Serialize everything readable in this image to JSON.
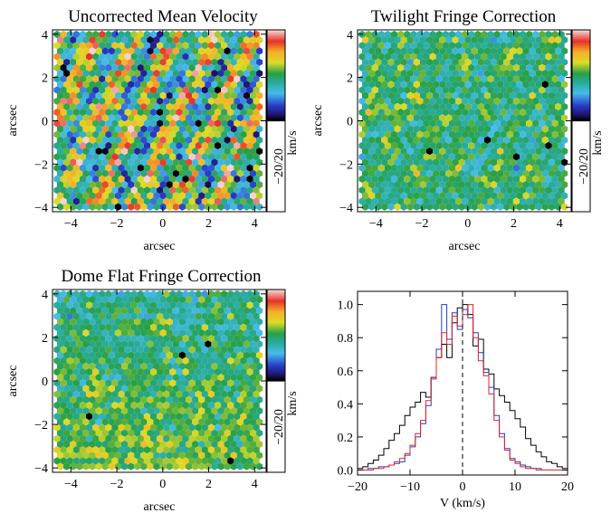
{
  "chart_data": [
    {
      "type": "heatmap",
      "title": "Uncorrected Mean Velocity",
      "xlabel": "arcsec",
      "ylabel": "arcsec",
      "xlim": [
        -4.8,
        4.5
      ],
      "ylim": [
        -4.2,
        4.2
      ],
      "xticks": [
        -4,
        -2,
        0,
        2,
        4
      ],
      "yticks": [
        -4,
        -2,
        0,
        2,
        4
      ],
      "colorbar": {
        "label": "km/s",
        "range_label": "−20/20",
        "range": [
          -20,
          20
        ]
      },
      "pattern": {
        "mean": 0,
        "spread": 8,
        "stripe_amplitude": 9,
        "seed": 11
      }
    },
    {
      "type": "heatmap",
      "title": "Twilight Fringe Correction",
      "xlabel": "arcsec",
      "ylabel": "arcsec",
      "xlim": [
        -4.8,
        4.5
      ],
      "ylim": [
        -4.2,
        4.2
      ],
      "xticks": [
        -4,
        -2,
        0,
        2,
        4
      ],
      "yticks": [
        -4,
        -2,
        0,
        2,
        4
      ],
      "colorbar": {
        "label": "km/s",
        "range_label": "−20/20",
        "range": [
          -20,
          20
        ]
      },
      "pattern": {
        "mean": -1,
        "spread": 4,
        "stripe_amplitude": 2,
        "seed": 23
      }
    },
    {
      "type": "heatmap",
      "title": "Dome Flat Fringe Correction",
      "xlabel": "arcsec",
      "ylabel": "arcsec",
      "xlim": [
        -4.8,
        4.5
      ],
      "ylim": [
        -4.2,
        4.2
      ],
      "xticks": [
        -4,
        -2,
        0,
        2,
        4
      ],
      "yticks": [
        -4,
        -2,
        0,
        2,
        4
      ],
      "colorbar": {
        "label": "km/s",
        "range_label": "−20/20",
        "range": [
          -20,
          20
        ]
      },
      "pattern": {
        "mean": 0,
        "spread": 4,
        "stripe_amplitude": 1,
        "seed": 37
      }
    },
    {
      "type": "line",
      "title": "",
      "xlabel": "V (km/s)",
      "ylabel": "",
      "xlim": [
        -20,
        20
      ],
      "ylim": [
        -0.03,
        1.08
      ],
      "xticks": [
        -20,
        -10,
        0,
        10,
        20
      ],
      "yticks": [
        0.0,
        0.2,
        0.4,
        0.6,
        0.8,
        1.0
      ],
      "ytick_labels": [
        "0.0",
        "0.2",
        "0.4",
        "0.6",
        "0.8",
        "1.0"
      ],
      "vline": 0,
      "bin_width": 1,
      "series": [
        {
          "color": "#000000",
          "x": [
            -20,
            -19,
            -18,
            -17,
            -16,
            -15,
            -14,
            -13,
            -12,
            -11,
            -10,
            -9,
            -8,
            -7,
            -6,
            -5,
            -4,
            -3,
            -2,
            -1,
            0,
            1,
            2,
            3,
            4,
            5,
            6,
            7,
            8,
            9,
            10,
            11,
            12,
            13,
            14,
            15,
            16,
            17,
            18,
            19
          ],
          "y": [
            0.01,
            0.02,
            0.04,
            0.06,
            0.09,
            0.13,
            0.18,
            0.22,
            0.27,
            0.33,
            0.38,
            0.41,
            0.47,
            0.44,
            0.56,
            0.68,
            0.76,
            0.68,
            0.89,
            0.98,
            1.0,
            0.94,
            0.75,
            0.79,
            0.61,
            0.58,
            0.49,
            0.45,
            0.41,
            0.36,
            0.31,
            0.26,
            0.19,
            0.15,
            0.11,
            0.08,
            0.05,
            0.04,
            0.02,
            0.01
          ]
        },
        {
          "color": "#1f3fbf",
          "x": [
            -20,
            -19,
            -18,
            -17,
            -16,
            -15,
            -14,
            -13,
            -12,
            -11,
            -10,
            -9,
            -8,
            -7,
            -6,
            -5,
            -4,
            -3,
            -2,
            -1,
            0,
            1,
            2,
            3,
            4,
            5,
            6,
            7,
            8,
            9,
            10,
            11,
            12,
            13,
            14,
            15,
            16,
            17,
            18,
            19
          ],
          "y": [
            0.0,
            0.0,
            0.01,
            0.01,
            0.02,
            0.02,
            0.03,
            0.04,
            0.05,
            0.09,
            0.14,
            0.2,
            0.28,
            0.39,
            0.56,
            0.73,
            1.0,
            0.79,
            0.95,
            0.85,
            0.97,
            0.92,
            0.83,
            0.71,
            0.59,
            0.5,
            0.33,
            0.22,
            0.13,
            0.07,
            0.05,
            0.03,
            0.02,
            0.01,
            0.01,
            0.0,
            0.0,
            0.0,
            0.0,
            0.0
          ]
        },
        {
          "color": "#e0232a",
          "x": [
            -20,
            -19,
            -18,
            -17,
            -16,
            -15,
            -14,
            -13,
            -12,
            -11,
            -10,
            -9,
            -8,
            -7,
            -6,
            -5,
            -4,
            -3,
            -2,
            -1,
            0,
            1,
            2,
            3,
            4,
            5,
            6,
            7,
            8,
            9,
            10,
            11,
            12,
            13,
            14,
            15,
            16,
            17,
            18,
            19
          ],
          "y": [
            0.0,
            0.0,
            0.0,
            0.01,
            0.01,
            0.02,
            0.03,
            0.05,
            0.07,
            0.1,
            0.15,
            0.22,
            0.3,
            0.42,
            0.55,
            0.68,
            0.83,
            0.76,
            0.93,
            0.87,
            0.94,
            1.0,
            0.8,
            0.66,
            0.57,
            0.46,
            0.3,
            0.2,
            0.12,
            0.06,
            0.04,
            0.02,
            0.01,
            0.01,
            0.0,
            0.0,
            0.0,
            0.0,
            0.0,
            0.0
          ]
        }
      ]
    }
  ]
}
